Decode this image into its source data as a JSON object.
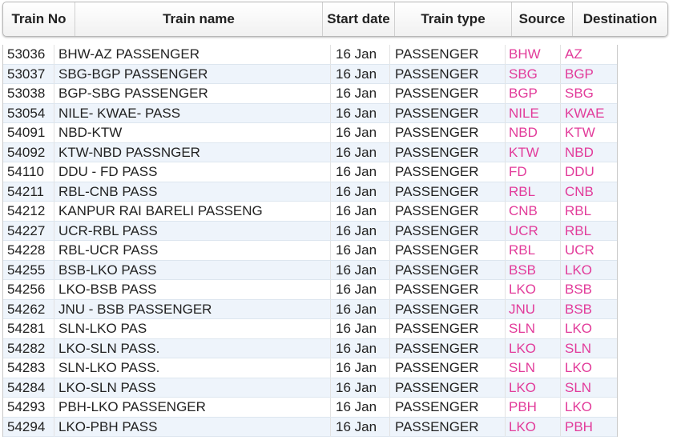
{
  "header": {
    "train_no": "Train No",
    "train_name": "Train name",
    "start_date": "Start date",
    "train_type": "Train type",
    "source": "Source",
    "destination": "Destination"
  },
  "colors": {
    "station_link": "#e23b9a",
    "row_alt": "#eef4fb"
  },
  "rows": [
    {
      "no": "53036",
      "name": "BHW-AZ PASSENGER",
      "date": "16 Jan",
      "type": "PASSENGER",
      "src": "BHW",
      "dst": "AZ"
    },
    {
      "no": "53037",
      "name": "SBG-BGP PASSENGER",
      "date": "16 Jan",
      "type": "PASSENGER",
      "src": "SBG",
      "dst": "BGP"
    },
    {
      "no": "53038",
      "name": "BGP-SBG PASSENGER",
      "date": "16 Jan",
      "type": "PASSENGER",
      "src": "BGP",
      "dst": "SBG"
    },
    {
      "no": "53054",
      "name": "NILE- KWAE- PASS",
      "date": "16 Jan",
      "type": "PASSENGER",
      "src": "NILE",
      "dst": "KWAE"
    },
    {
      "no": "54091",
      "name": "NBD-KTW",
      "date": "16 Jan",
      "type": "PASSENGER",
      "src": "NBD",
      "dst": "KTW"
    },
    {
      "no": "54092",
      "name": "KTW-NBD PASSNGER",
      "date": "16 Jan",
      "type": "PASSENGER",
      "src": "KTW",
      "dst": "NBD"
    },
    {
      "no": "54110",
      "name": "DDU - FD PASS",
      "date": "16 Jan",
      "type": "PASSENGER",
      "src": "FD",
      "dst": "DDU"
    },
    {
      "no": "54211",
      "name": "RBL-CNB PASS",
      "date": "16 Jan",
      "type": "PASSENGER",
      "src": "RBL",
      "dst": "CNB"
    },
    {
      "no": "54212",
      "name": "KANPUR RAI BARELI PASSENG",
      "date": "16 Jan",
      "type": "PASSENGER",
      "src": "CNB",
      "dst": "RBL"
    },
    {
      "no": "54227",
      "name": "UCR-RBL PASS",
      "date": "16 Jan",
      "type": "PASSENGER",
      "src": "UCR",
      "dst": "RBL"
    },
    {
      "no": "54228",
      "name": "RBL-UCR PASS",
      "date": "16 Jan",
      "type": "PASSENGER",
      "src": "RBL",
      "dst": "UCR"
    },
    {
      "no": "54255",
      "name": "BSB-LKO PASS",
      "date": "16 Jan",
      "type": "PASSENGER",
      "src": "BSB",
      "dst": "LKO"
    },
    {
      "no": "54256",
      "name": "LKO-BSB PASS",
      "date": "16 Jan",
      "type": "PASSENGER",
      "src": "LKO",
      "dst": "BSB"
    },
    {
      "no": "54262",
      "name": "JNU - BSB PASSENGER",
      "date": "16 Jan",
      "type": "PASSENGER",
      "src": "JNU",
      "dst": "BSB"
    },
    {
      "no": "54281",
      "name": "SLN-LKO PAS",
      "date": "16 Jan",
      "type": "PASSENGER",
      "src": "SLN",
      "dst": "LKO"
    },
    {
      "no": "54282",
      "name": "LKO-SLN PASS.",
      "date": "16 Jan",
      "type": "PASSENGER",
      "src": "LKO",
      "dst": "SLN"
    },
    {
      "no": "54283",
      "name": "SLN-LKO PASS.",
      "date": "16 Jan",
      "type": "PASSENGER",
      "src": "SLN",
      "dst": "LKO"
    },
    {
      "no": "54284",
      "name": "LKO-SLN PASS",
      "date": "16 Jan",
      "type": "PASSENGER",
      "src": "LKO",
      "dst": "SLN"
    },
    {
      "no": "54293",
      "name": "PBH-LKO PASSENGER",
      "date": "16 Jan",
      "type": "PASSENGER",
      "src": "PBH",
      "dst": "LKO"
    },
    {
      "no": "54294",
      "name": "LKO-PBH PASS",
      "date": "16 Jan",
      "type": "PASSENGER",
      "src": "LKO",
      "dst": "PBH"
    }
  ]
}
